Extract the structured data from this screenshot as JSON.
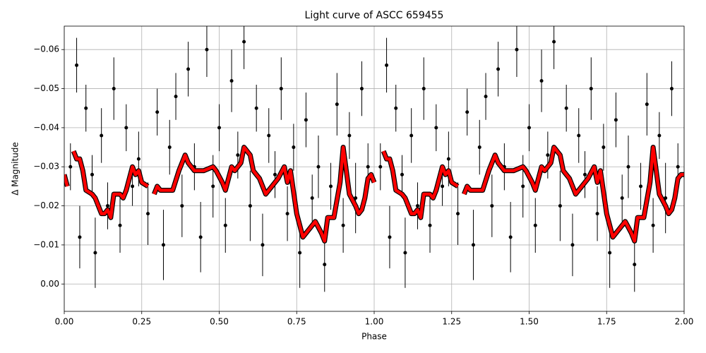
{
  "chart_data": {
    "type": "scatter",
    "title": "Light curve of ASCC 659455",
    "x_label": "Phase",
    "y_label": "Δ Magnitude",
    "xlim": [
      0,
      2
    ],
    "ylim": [
      0.007,
      -0.066
    ],
    "xticks": [
      {
        "value": 0,
        "label": "0.00"
      },
      {
        "value": 0.25,
        "label": "0.25"
      },
      {
        "value": 0.5,
        "label": "0.50"
      },
      {
        "value": 0.75,
        "label": "0.75"
      },
      {
        "value": 1,
        "label": "1.00"
      },
      {
        "value": 1.25,
        "label": "1.25"
      },
      {
        "value": 1.5,
        "label": "1.50"
      },
      {
        "value": 1.75,
        "label": "1.75"
      },
      {
        "value": 2,
        "label": "2.00"
      }
    ],
    "yticks": [
      {
        "value": 0,
        "label": "0.00"
      },
      {
        "value": -0.01,
        "label": "−0.01"
      },
      {
        "value": -0.02,
        "label": "−0.02"
      },
      {
        "value": -0.03,
        "label": "−0.03"
      },
      {
        "value": -0.04,
        "label": "−0.04"
      },
      {
        "value": -0.05,
        "label": "−0.05"
      },
      {
        "value": -0.06,
        "label": "−0.06"
      }
    ],
    "grid": true,
    "points": {
      "color": "#000000",
      "x": [
        0.02,
        0.04,
        0.05,
        0.07,
        0.09,
        0.1,
        0.12,
        0.14,
        0.16,
        0.18,
        0.2,
        0.22,
        0.24,
        0.27,
        0.3,
        0.32,
        0.34,
        0.36,
        0.38,
        0.4,
        0.42,
        0.44,
        0.46,
        0.48,
        0.5,
        0.52,
        0.54,
        0.56,
        0.58,
        0.6,
        0.62,
        0.64,
        0.66,
        0.68,
        0.7,
        0.72,
        0.74,
        0.76,
        0.78,
        0.8,
        0.82,
        0.84,
        0.86,
        0.88,
        0.9,
        0.92,
        0.94,
        0.96,
        0.98,
        1.02,
        1.04,
        1.05,
        1.07,
        1.09,
        1.1,
        1.12,
        1.14,
        1.16,
        1.18,
        1.2,
        1.22,
        1.24,
        1.27,
        1.3,
        1.32,
        1.34,
        1.36,
        1.38,
        1.4,
        1.42,
        1.44,
        1.46,
        1.48,
        1.5,
        1.52,
        1.54,
        1.56,
        1.58,
        1.6,
        1.62,
        1.64,
        1.66,
        1.68,
        1.7,
        1.72,
        1.74,
        1.76,
        1.78,
        1.8,
        1.82,
        1.84,
        1.86,
        1.88,
        1.9,
        1.92,
        1.94,
        1.96,
        1.98
      ],
      "values": [
        -0.03,
        -0.056,
        -0.012,
        -0.045,
        -0.028,
        -0.008,
        -0.038,
        -0.02,
        -0.05,
        -0.015,
        -0.04,
        -0.025,
        -0.032,
        -0.018,
        -0.044,
        -0.01,
        -0.035,
        -0.048,
        -0.02,
        -0.055,
        -0.03,
        -0.012,
        -0.06,
        -0.025,
        -0.04,
        -0.015,
        -0.052,
        -0.033,
        -0.062,
        -0.02,
        -0.045,
        -0.01,
        -0.038,
        -0.028,
        -0.05,
        -0.018,
        -0.035,
        -0.008,
        -0.042,
        -0.022,
        -0.03,
        -0.005,
        -0.025,
        -0.046,
        -0.015,
        -0.038,
        -0.022,
        -0.05,
        -0.03,
        -0.03,
        -0.056,
        -0.012,
        -0.045,
        -0.028,
        -0.008,
        -0.038,
        -0.02,
        -0.05,
        -0.015,
        -0.04,
        -0.025,
        -0.032,
        -0.018,
        -0.044,
        -0.01,
        -0.035,
        -0.048,
        -0.02,
        -0.055,
        -0.03,
        -0.012,
        -0.06,
        -0.025,
        -0.04,
        -0.015,
        -0.052,
        -0.033,
        -0.062,
        -0.02,
        -0.045,
        -0.01,
        -0.038,
        -0.028,
        -0.05,
        -0.018,
        -0.035,
        -0.008,
        -0.042,
        -0.022,
        -0.03,
        -0.005,
        -0.025,
        -0.046,
        -0.015,
        -0.038,
        -0.022,
        -0.05,
        -0.03
      ],
      "errors": [
        0.006,
        0.007,
        0.008,
        0.006,
        0.005,
        0.009,
        0.007,
        0.006,
        0.008,
        0.007,
        0.006,
        0.005,
        0.007,
        0.008,
        0.006,
        0.009,
        0.007,
        0.006,
        0.008,
        0.007,
        0.006,
        0.009,
        0.007,
        0.008,
        0.006,
        0.007,
        0.008,
        0.006,
        0.007,
        0.009,
        0.006,
        0.008,
        0.007,
        0.006,
        0.008,
        0.007,
        0.006,
        0.009,
        0.007,
        0.006,
        0.008,
        0.007,
        0.006,
        0.008,
        0.007,
        0.006,
        0.009,
        0.007,
        0.006,
        0.006,
        0.007,
        0.008,
        0.006,
        0.005,
        0.009,
        0.007,
        0.006,
        0.008,
        0.007,
        0.006,
        0.005,
        0.007,
        0.008,
        0.006,
        0.009,
        0.007,
        0.006,
        0.008,
        0.007,
        0.006,
        0.009,
        0.007,
        0.008,
        0.006,
        0.007,
        0.008,
        0.006,
        0.007,
        0.009,
        0.006,
        0.008,
        0.007,
        0.006,
        0.008,
        0.007,
        0.006,
        0.009,
        0.007,
        0.006,
        0.008,
        0.007,
        0.006,
        0.008,
        0.007,
        0.006,
        0.009,
        0.007,
        0.006
      ]
    },
    "binned": {
      "color": "#ff0000",
      "x": [
        0,
        0.01,
        0.02,
        0.03,
        0.04,
        0.05,
        0.06,
        0.07,
        0.09,
        0.1,
        0.12,
        0.13,
        0.14,
        0.15,
        0.16,
        0.18,
        0.19,
        0.2,
        0.22,
        0.23,
        0.24,
        0.25,
        0.27,
        0.28,
        0.29,
        0.3,
        0.31,
        0.33,
        0.35,
        0.37,
        0.39,
        0.4,
        0.42,
        0.45,
        0.48,
        0.49,
        0.51,
        0.52,
        0.54,
        0.55,
        0.57,
        0.58,
        0.6,
        0.61,
        0.63,
        0.65,
        0.67,
        0.69,
        0.71,
        0.72,
        0.73,
        0.75,
        0.77,
        0.79,
        0.81,
        0.83,
        0.84,
        0.85,
        0.87,
        0.89,
        0.9,
        0.91,
        0.92,
        0.94,
        0.95,
        0.96,
        0.97,
        0.98,
        0.99,
        1.0,
        1.01,
        1.02,
        1.03,
        1.04,
        1.05,
        1.06,
        1.07,
        1.09,
        1.1,
        1.12,
        1.13,
        1.14,
        1.15,
        1.16,
        1.18,
        1.19,
        1.2,
        1.22,
        1.23,
        1.24,
        1.25,
        1.27,
        1.28,
        1.29,
        1.3,
        1.31,
        1.33,
        1.35,
        1.37,
        1.39,
        1.4,
        1.42,
        1.45,
        1.48,
        1.49,
        1.51,
        1.52,
        1.54,
        1.55,
        1.57,
        1.58,
        1.6,
        1.61,
        1.63,
        1.65,
        1.67,
        1.69,
        1.71,
        1.72,
        1.73,
        1.75,
        1.77,
        1.79,
        1.81,
        1.83,
        1.84,
        1.85,
        1.87,
        1.89,
        1.9,
        1.91,
        1.92,
        1.94,
        1.95,
        1.96,
        1.97,
        1.98,
        1.99,
        2.0
      ],
      "values": [
        -0.028,
        -0.025,
        null,
        -0.034,
        -0.032,
        -0.032,
        -0.029,
        -0.024,
        -0.023,
        -0.022,
        -0.018,
        -0.018,
        -0.019,
        -0.017,
        -0.023,
        -0.023,
        -0.022,
        -0.024,
        -0.03,
        -0.028,
        -0.029,
        -0.026,
        -0.025,
        null,
        -0.023,
        -0.025,
        -0.024,
        -0.024,
        -0.024,
        -0.029,
        -0.033,
        -0.031,
        -0.029,
        -0.029,
        -0.03,
        -0.029,
        -0.026,
        -0.024,
        -0.03,
        -0.029,
        -0.031,
        -0.035,
        -0.033,
        -0.029,
        -0.027,
        -0.023,
        -0.025,
        -0.027,
        -0.03,
        -0.026,
        -0.029,
        -0.018,
        -0.012,
        -0.014,
        -0.016,
        -0.013,
        -0.011,
        -0.017,
        -0.017,
        -0.026,
        -0.035,
        -0.029,
        -0.023,
        -0.02,
        -0.018,
        -0.019,
        -0.022,
        -0.027,
        -0.028,
        -0.026,
        null,
        null,
        -0.034,
        -0.032,
        -0.032,
        -0.029,
        -0.024,
        -0.023,
        -0.022,
        -0.018,
        -0.018,
        -0.019,
        -0.017,
        -0.023,
        -0.023,
        -0.022,
        -0.024,
        -0.03,
        -0.028,
        -0.029,
        -0.026,
        -0.025,
        null,
        -0.023,
        -0.025,
        -0.024,
        -0.024,
        -0.024,
        -0.029,
        -0.033,
        -0.031,
        -0.029,
        -0.029,
        -0.03,
        -0.029,
        -0.026,
        -0.024,
        -0.03,
        -0.029,
        -0.031,
        -0.035,
        -0.033,
        -0.029,
        -0.027,
        -0.023,
        -0.025,
        -0.027,
        -0.03,
        -0.026,
        -0.029,
        -0.018,
        -0.012,
        -0.014,
        -0.016,
        -0.013,
        -0.011,
        -0.017,
        -0.017,
        -0.026,
        -0.035,
        -0.029,
        -0.023,
        -0.02,
        -0.018,
        -0.019,
        -0.022,
        -0.027,
        -0.028,
        -0.028
      ]
    }
  }
}
